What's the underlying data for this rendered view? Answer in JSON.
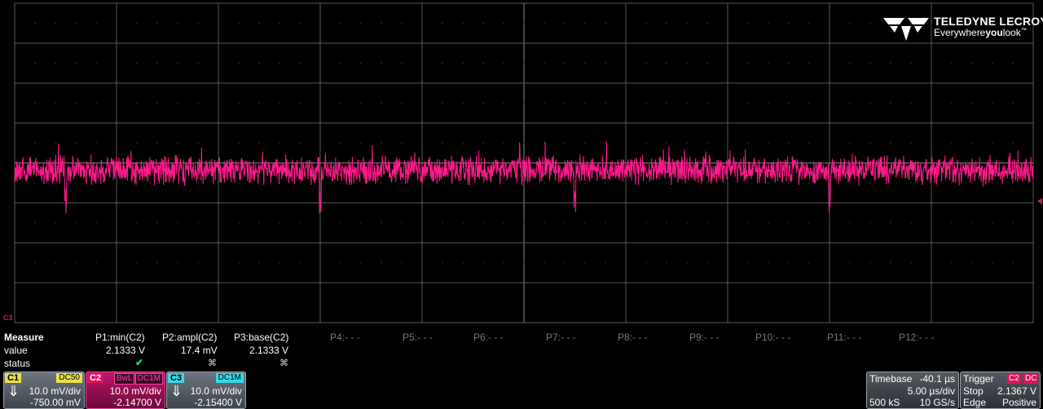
{
  "brand": {
    "name": "TELEDYNE LECROY",
    "tagline_a": "Everywhere",
    "tagline_b": "you",
    "tagline_c": "look",
    "tm": "™"
  },
  "colors": {
    "trace": "#ff1a8c",
    "grid": "#5a5a5a",
    "c1": "#e8e048",
    "c2": "#e0105f",
    "c3": "#35d8e8"
  },
  "waveform": {
    "channel": "C2",
    "baseline_div": -0.18,
    "noise_p2p_mv": 17.4,
    "volts_per_div_mv": 10.0,
    "offset_v": -2.147,
    "time_per_div_us": 5.0
  },
  "channel_marker": "C3",
  "measure": {
    "header": "Measure",
    "row_value": "value",
    "row_status": "status",
    "params": [
      {
        "name": "P1:min(C2)",
        "value": "2.1333 V",
        "status": "✔"
      },
      {
        "name": "P2:ampl(C2)",
        "value": "17.4 mV",
        "status": "⌘"
      },
      {
        "name": "P3:base(C2)",
        "value": "2.1333 V",
        "status": "⌘"
      },
      {
        "name": "P4:- - -"
      },
      {
        "name": "P5:- - -"
      },
      {
        "name": "P6:- - -"
      },
      {
        "name": "P7:- - -"
      },
      {
        "name": "P8:- - -"
      },
      {
        "name": "P9:- - -"
      },
      {
        "name": "P10:- - -"
      },
      {
        "name": "P11:- - -"
      },
      {
        "name": "P12:- - -"
      }
    ]
  },
  "channels": [
    {
      "tag": "C1",
      "coupling": "DC50",
      "scale": "10.0 mV/div",
      "offset": "-750.00 mV"
    },
    {
      "tag": "C2",
      "bw": "BwL",
      "coupling": "DC1M",
      "scale": "10.0 mV/div",
      "offset": "-2.14700 V"
    },
    {
      "tag": "C3",
      "coupling": "DC1M",
      "scale": "10.0 mV/div",
      "offset": "-2.15400 V"
    }
  ],
  "timebase": {
    "label": "Timebase",
    "delay": "-40.1 µs",
    "per_div": "5.00 µs/div",
    "samples": "500 kS",
    "rate": "10 GS/s"
  },
  "trigger": {
    "label": "Trigger",
    "source": "C2",
    "coupling": "DC",
    "mode": "Stop",
    "level": "2.1367 V",
    "type": "Edge",
    "slope": "Positive"
  }
}
